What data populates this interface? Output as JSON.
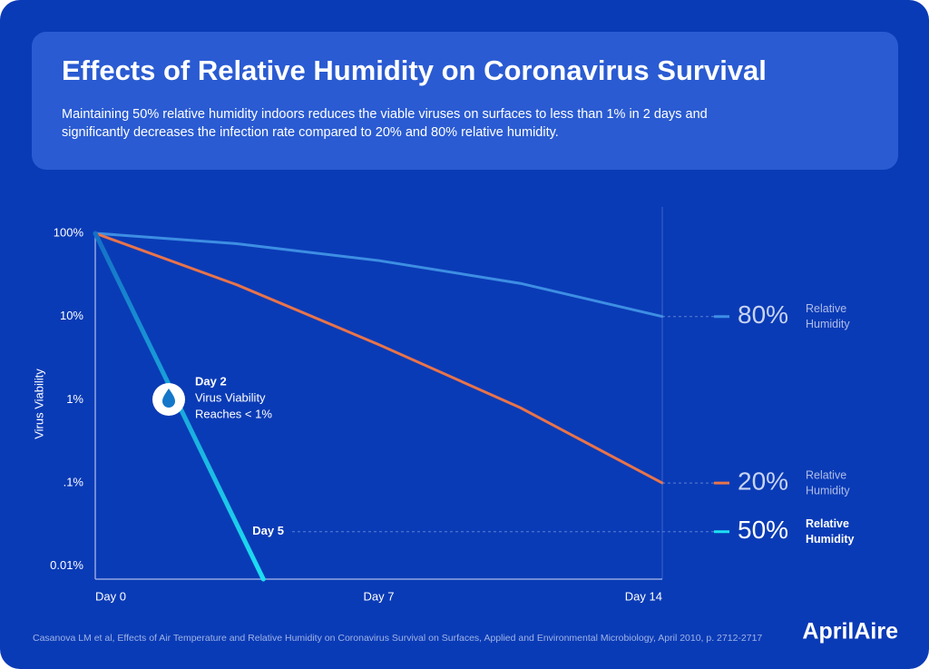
{
  "chart_data": {
    "type": "line",
    "title": "Effects of Relative Humidity on Coronavirus Survival",
    "subtitle": "Maintaining 50% relative humidity indoors reduces the viable viruses on surfaces to less than 1% in 2 days and significantly decreases the infection rate compared to 20% and 80% relative humidity.",
    "ylabel": "Virus Viability",
    "log_y": true,
    "xlim": [
      0,
      14
    ],
    "xticks": [
      {
        "value": 0,
        "label": "Day 0"
      },
      {
        "value": 7,
        "label": "Day 7"
      },
      {
        "value": 14,
        "label": "Day 14"
      }
    ],
    "ylim": [
      0.007,
      100
    ],
    "yticks": [
      {
        "value": 100,
        "label": "100%"
      },
      {
        "value": 10,
        "label": "10%"
      },
      {
        "value": 1,
        "label": "1%"
      },
      {
        "value": 0.1,
        "label": ".1%"
      },
      {
        "value": 0.01,
        "label": "0.01%"
      }
    ],
    "series": [
      {
        "name": "80%",
        "label_lines": [
          "Relative",
          "Humidity"
        ],
        "color": "#3d8ee3",
        "x": [
          0,
          3.5,
          7,
          10.5,
          14
        ],
        "values": [
          100,
          75,
          47,
          25,
          10
        ]
      },
      {
        "name": "20%",
        "label_lines": [
          "Relative",
          "Humidity"
        ],
        "color": "#e8744a",
        "x": [
          0,
          3.5,
          7,
          10.5,
          14
        ],
        "values": [
          100,
          24,
          4.6,
          0.8,
          0.1
        ]
      },
      {
        "name": "50%",
        "label_lines": [
          "Relative",
          "Humidity"
        ],
        "color": "#1de0f2",
        "x": [
          0,
          2,
          4.15
        ],
        "values": [
          100,
          1,
          0.007
        ],
        "level_note": {
          "label": "Day 5",
          "value": 0.026
        }
      }
    ],
    "annotation": [
      "Day 2",
      "Virus Viability",
      "Reaches < 1%"
    ],
    "source": "Casanova LM et al, Effects of Air Temperature and Relative Humidity on Coronavirus Survival on Surfaces, Applied and Environmental Microbiology, April 2010, p. 2712-2717",
    "brand": "AprilAire"
  }
}
